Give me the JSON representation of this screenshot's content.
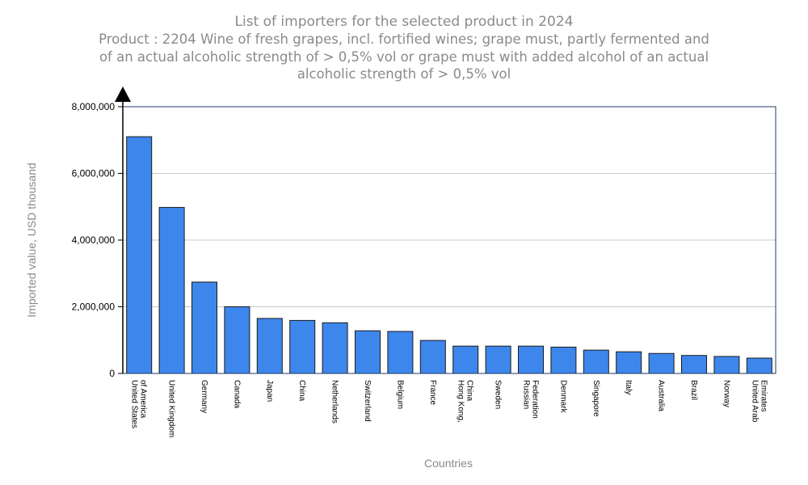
{
  "chart_data": {
    "type": "bar",
    "title": "List of importers for the selected product in 2024",
    "subtitle": "Product : 2204 Wine of fresh grapes, incl. fortified wines; grape must, partly fermented and of an actual alcoholic strength of > 0,5% vol or grape must with added alcohol of an actual alcoholic strength of > 0,5% vol",
    "xlabel": "Countries",
    "ylabel": "Imported value, USD thousand",
    "ylim": [
      0,
      8000000
    ],
    "yticks": [
      0,
      2000000,
      4000000,
      6000000,
      8000000
    ],
    "ytick_labels": [
      "0",
      "2,000,000",
      "4,000,000",
      "6,000,000",
      "8,000,000"
    ],
    "categories": [
      "United States of America",
      "United Kingdom",
      "Germany",
      "Canada",
      "Japan",
      "China",
      "Netherlands",
      "Switzerland",
      "Belgium",
      "France",
      "Hong Kong, China",
      "Sweden",
      "Russian Federation",
      "Denmark",
      "Singapore",
      "Italy",
      "Australia",
      "Brazil",
      "Norway",
      "United Arab Emirates"
    ],
    "category_lines": [
      [
        "United States",
        "of America"
      ],
      [
        "United Kingdom"
      ],
      [
        "Germany"
      ],
      [
        "Canada"
      ],
      [
        "Japan"
      ],
      [
        "China"
      ],
      [
        "Netherlands"
      ],
      [
        "Switzerland"
      ],
      [
        "Belgium"
      ],
      [
        "France"
      ],
      [
        "Hong Kong,",
        "China"
      ],
      [
        "Sweden"
      ],
      [
        "Russian",
        "Federation"
      ],
      [
        "Denmark"
      ],
      [
        "Singapore"
      ],
      [
        "Italy"
      ],
      [
        "Australia"
      ],
      [
        "Brazil"
      ],
      [
        "Norway"
      ],
      [
        "United Arab",
        "Emirates"
      ]
    ],
    "values": [
      7100000,
      4980000,
      2740000,
      2000000,
      1650000,
      1590000,
      1520000,
      1280000,
      1260000,
      990000,
      820000,
      820000,
      820000,
      790000,
      700000,
      650000,
      600000,
      540000,
      510000,
      460000
    ],
    "grid": true,
    "legend": "none",
    "colors": {
      "bar_fill": "#3d87ec",
      "bar_stroke": "#1a1a1a",
      "grid": "#c8c8c8",
      "axis": "#1f3a66",
      "title": "#8a8a8a"
    }
  }
}
